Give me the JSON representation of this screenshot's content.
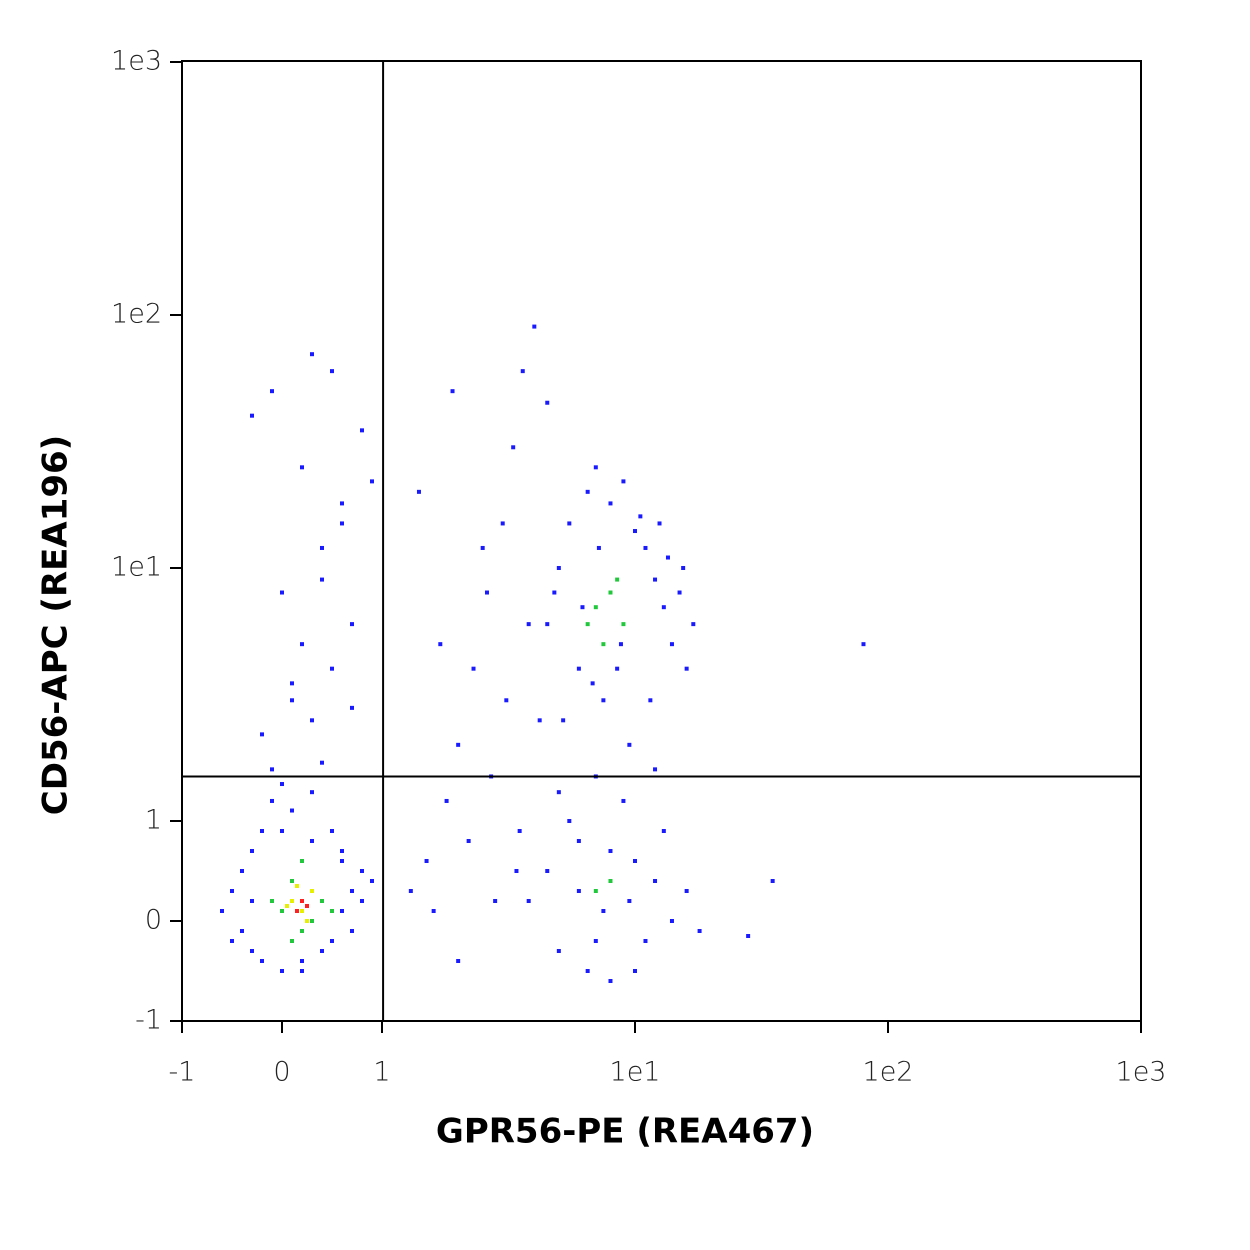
{
  "chart_data": {
    "type": "scatter",
    "x_label": "GPR56-PE (REA467)",
    "y_label": "CD56-APC (REA196)",
    "scale": "biexponential",
    "xlim": [
      -1,
      1000
    ],
    "ylim": [
      -1,
      1000
    ],
    "xticks": [
      -1,
      0,
      1,
      {
        "value": 10,
        "label": "1e1"
      },
      {
        "value": 100,
        "label": "1e2"
      },
      {
        "value": 1000,
        "label": "1e3"
      }
    ],
    "yticks": [
      -1,
      0,
      1,
      {
        "value": 10,
        "label": "1e1"
      },
      {
        "value": 100,
        "label": "1e2"
      },
      {
        "value": 1000,
        "label": "1e3"
      }
    ],
    "gates": {
      "x": 1.01,
      "y": 1.5
    },
    "series": [
      {
        "color": "#1a1aff",
        "x": [
          -0.6,
          -0.5,
          -0.4,
          -0.4,
          -0.3,
          -0.3,
          -0.2,
          -0.2,
          -0.1,
          0,
          0,
          0.1,
          0.2,
          0.3,
          0.4,
          0.5,
          0.5,
          0.6,
          0.6,
          0.7,
          0.7,
          0.8,
          0.8,
          0.9,
          -0.5,
          -0.3,
          0,
          0.3,
          0.6,
          0.2,
          -0.1,
          0.4,
          -0.2,
          0.1,
          0.3,
          0.5,
          0.7,
          0.0,
          0.4,
          0.6,
          0.2,
          0.8,
          -0.1,
          0.3,
          0.5,
          0.1,
          0.7,
          0.2,
          0.4,
          0.6,
          -0.3,
          0.9,
          1.3,
          1.5,
          1.8,
          2,
          2.3,
          2.6,
          3,
          3.3,
          3.6,
          4,
          4.5,
          1.6,
          2.2,
          2.8,
          3.4,
          1.4,
          1.9,
          2.5,
          3.1,
          3.8,
          4.2,
          2,
          2.7,
          1.7,
          3.5,
          4.5,
          5,
          5.5,
          6,
          6.5,
          7,
          7.5,
          8,
          9,
          10,
          11,
          12,
          13,
          14,
          15,
          16,
          17,
          5.2,
          6.8,
          9.5,
          11.5,
          13.5,
          4.8,
          7.2,
          8.5,
          10.5,
          12.5,
          15.5,
          6.2,
          8.8,
          3.8,
          4.5,
          5,
          5.5,
          6,
          6.5,
          7,
          7.5,
          8,
          9,
          10,
          11,
          12,
          13,
          14,
          16,
          18,
          6,
          8,
          9.5,
          7,
          10,
          5,
          12,
          80,
          35,
          28
        ],
        "y": [
          0.1,
          0.3,
          -0.1,
          0.5,
          0.7,
          -0.3,
          0.9,
          -0.4,
          1.2,
          -0.5,
          1.4,
          1.1,
          -0.4,
          1.3,
          -0.3,
          0.9,
          -0.2,
          0.6,
          0.1,
          0.3,
          -0.1,
          0.2,
          0.5,
          0.4,
          -0.2,
          0.2,
          0.9,
          0.8,
          0.7,
          -0.5,
          1.6,
          1.7,
          2.2,
          3,
          2.5,
          4,
          6,
          8,
          12,
          18,
          25,
          35,
          50,
          70,
          60,
          3.5,
          2.8,
          5,
          9,
          15,
          40,
          22,
          0.3,
          0.6,
          1.2,
          2,
          4,
          8,
          15,
          30,
          60,
          90,
          45,
          0.1,
          0.8,
          0.2,
          0.5,
          20,
          50,
          12,
          3,
          6,
          2.5,
          -0.4,
          1.5,
          5,
          0.9,
          6,
          10,
          15,
          4,
          20,
          25,
          3,
          18,
          22,
          14,
          12,
          9,
          7,
          5,
          8,
          4,
          6,
          2.5,
          3.5,
          2,
          3,
          11,
          8,
          12,
          4,
          16,
          15,
          10,
          7,
          5,
          0.2,
          0.5,
          -0.3,
          1,
          0.8,
          -0.5,
          1.5,
          0.1,
          -0.6,
          1.2,
          0.6,
          -0.2,
          0.4,
          0.9,
          0,
          0.3,
          -0.1,
          0.3,
          0.7,
          0.2,
          -0.2,
          -0.5,
          1.3,
          1.6,
          5,
          0.4,
          -0.15
        ]
      },
      {
        "color": "#22c83c",
        "x": [
          0,
          0.1,
          0.2,
          0.3,
          0.4,
          -0.1,
          0.5,
          0.2,
          0.1,
          0.3,
          7,
          8,
          9,
          7.5,
          8.5,
          6.5,
          7,
          8
        ],
        "y": [
          0.1,
          0.4,
          -0.1,
          0.3,
          0.2,
          0.2,
          0.1,
          0.6,
          -0.2,
          0.0,
          7,
          8,
          6,
          5,
          9,
          6,
          0.3,
          0.4
        ]
      },
      {
        "color": "#e6f000",
        "x": [
          0.1,
          0.2,
          0.3,
          0.15,
          0.25,
          0.05
        ],
        "y": [
          0.2,
          0.1,
          0.3,
          0.35,
          0.0,
          0.15
        ]
      },
      {
        "color": "#ff2020",
        "x": [
          0.2,
          0.25,
          0.15
        ],
        "y": [
          0.2,
          0.15,
          0.1
        ]
      }
    ]
  }
}
